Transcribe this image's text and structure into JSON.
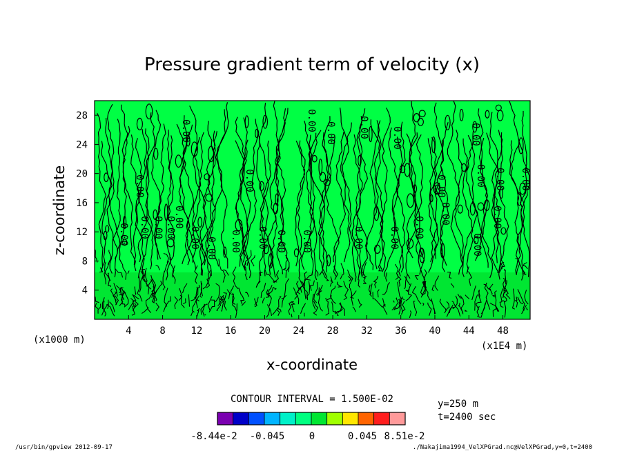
{
  "chart_data": {
    "type": "contour",
    "title": "Pressure gradient term of velocity (x)",
    "xlabel": "x-coordinate",
    "ylabel": "z-coordinate",
    "x_unit_left": "(x1000 m)",
    "x_unit_right": "(x1E4 m)",
    "xlim": [
      0,
      51.2
    ],
    "ylim": [
      0,
      30
    ],
    "x_ticks": [
      "4",
      "8",
      "12",
      "16",
      "20",
      "24",
      "28",
      "32",
      "36",
      "40",
      "44",
      "48"
    ],
    "y_ticks": [
      "4",
      "8",
      "12",
      "16",
      "20",
      "24",
      "28"
    ],
    "contour_label": "0.00",
    "contour_interval_text": "CONTOUR INTERVAL = 1.500E-02",
    "info": [
      "y=250 m",
      "t=2400 sec"
    ],
    "colorbar": {
      "colors": [
        "#7a00b0",
        "#0000c8",
        "#0050ff",
        "#00b4ff",
        "#00f0c8",
        "#00ff80",
        "#00e632",
        "#a0ff00",
        "#ffe600",
        "#ff6400",
        "#ff1e1e",
        "#ff9a9a"
      ],
      "labels": [
        "-8.44e-2",
        "-0.045",
        "0",
        "0.045",
        "8.51e-2"
      ]
    },
    "fill_color": "#00ff44",
    "lower_fill_color": "#00e632"
  },
  "footer": {
    "left": "/usr/bin/gpview  2012-09-17",
    "right": "./Nakajima1994_VelXPGrad.nc@VelXPGrad,y=0,t=2400"
  }
}
